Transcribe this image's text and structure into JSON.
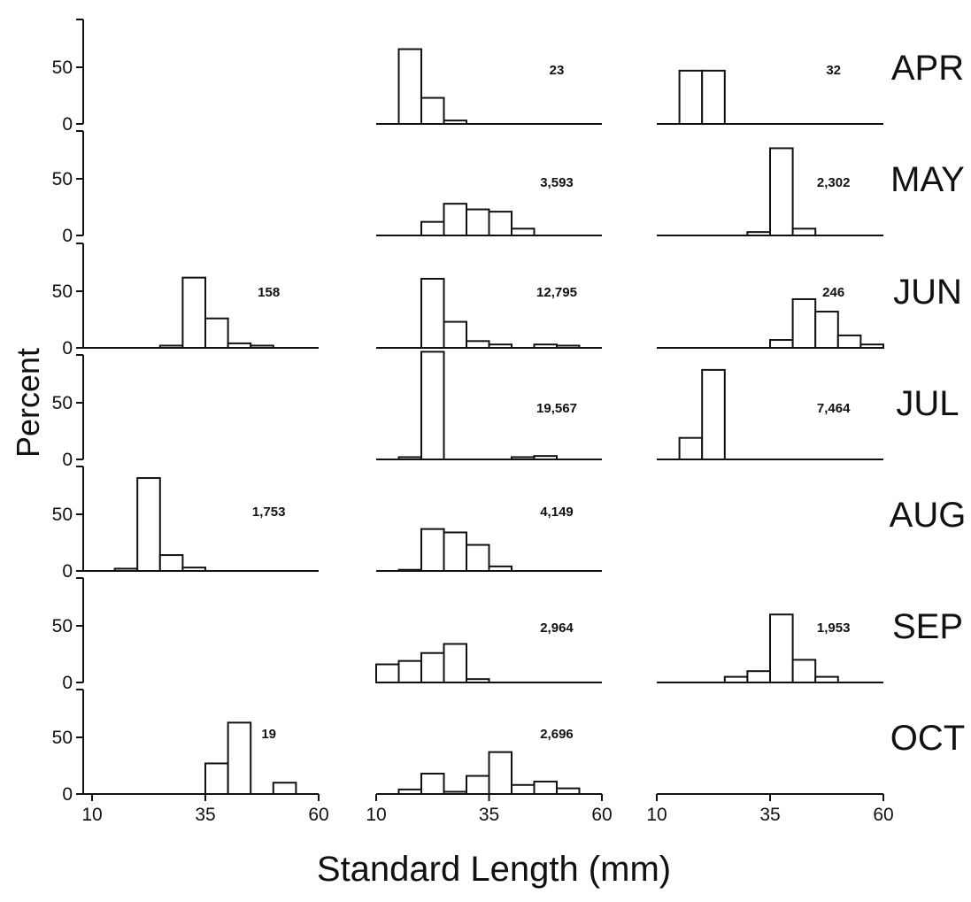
{
  "chart_data": {
    "type": "bar",
    "ylabel": "Percent",
    "xlabel": "Standard Length (mm)",
    "x_range": [
      10,
      60
    ],
    "x_ticks": [
      "10",
      "35",
      "60"
    ],
    "y_range": [
      0,
      100
    ],
    "y_ticks": [
      "0",
      "50"
    ],
    "bin_width": 5,
    "months": [
      "APR",
      "MAY",
      "JUN",
      "JUL",
      "AUG",
      "SEP",
      "OCT"
    ],
    "columns": 3,
    "panels": [
      {
        "month": "APR",
        "col": 2,
        "n": "23",
        "bins": [
          {
            "start": 15,
            "value": 66
          },
          {
            "start": 20,
            "value": 23
          },
          {
            "start": 25,
            "value": 3
          }
        ]
      },
      {
        "month": "APR",
        "col": 3,
        "n": "32",
        "bins": [
          {
            "start": 15,
            "value": 47
          },
          {
            "start": 20,
            "value": 47
          }
        ]
      },
      {
        "month": "MAY",
        "col": 2,
        "n": "3,593",
        "bins": [
          {
            "start": 20,
            "value": 12
          },
          {
            "start": 25,
            "value": 28
          },
          {
            "start": 30,
            "value": 23
          },
          {
            "start": 35,
            "value": 21
          },
          {
            "start": 40,
            "value": 6
          }
        ]
      },
      {
        "month": "MAY",
        "col": 3,
        "n": "2,302",
        "bins": [
          {
            "start": 30,
            "value": 3
          },
          {
            "start": 35,
            "value": 77
          },
          {
            "start": 40,
            "value": 6
          }
        ]
      },
      {
        "month": "JUN",
        "col": 1,
        "n": "158",
        "bins": [
          {
            "start": 25,
            "value": 2
          },
          {
            "start": 30,
            "value": 62
          },
          {
            "start": 35,
            "value": 26
          },
          {
            "start": 40,
            "value": 4
          },
          {
            "start": 45,
            "value": 2
          }
        ]
      },
      {
        "month": "JUN",
        "col": 2,
        "n": "12,795",
        "bins": [
          {
            "start": 20,
            "value": 61
          },
          {
            "start": 25,
            "value": 23
          },
          {
            "start": 30,
            "value": 6
          },
          {
            "start": 35,
            "value": 3
          },
          {
            "start": 45,
            "value": 3
          },
          {
            "start": 50,
            "value": 2
          }
        ]
      },
      {
        "month": "JUN",
        "col": 3,
        "n": "246",
        "bins": [
          {
            "start": 35,
            "value": 7
          },
          {
            "start": 40,
            "value": 43
          },
          {
            "start": 45,
            "value": 32
          },
          {
            "start": 50,
            "value": 11
          },
          {
            "start": 55,
            "value": 3
          }
        ]
      },
      {
        "month": "JUL",
        "col": 2,
        "n": "19,567",
        "bins": [
          {
            "start": 15,
            "value": 2
          },
          {
            "start": 20,
            "value": 95
          },
          {
            "start": 40,
            "value": 2
          },
          {
            "start": 45,
            "value": 3
          }
        ]
      },
      {
        "month": "JUL",
        "col": 3,
        "n": "7,464",
        "bins": [
          {
            "start": 15,
            "value": 19
          },
          {
            "start": 20,
            "value": 79
          }
        ]
      },
      {
        "month": "AUG",
        "col": 1,
        "n": "1,753",
        "bins": [
          {
            "start": 15,
            "value": 2
          },
          {
            "start": 20,
            "value": 82
          },
          {
            "start": 25,
            "value": 14
          },
          {
            "start": 30,
            "value": 3
          }
        ]
      },
      {
        "month": "AUG",
        "col": 2,
        "n": "4,149",
        "bins": [
          {
            "start": 15,
            "value": 1
          },
          {
            "start": 20,
            "value": 37
          },
          {
            "start": 25,
            "value": 34
          },
          {
            "start": 30,
            "value": 23
          },
          {
            "start": 35,
            "value": 4
          }
        ]
      },
      {
        "month": "SEP",
        "col": 2,
        "n": "2,964",
        "bins": [
          {
            "start": 10,
            "value": 16
          },
          {
            "start": 15,
            "value": 19
          },
          {
            "start": 20,
            "value": 26
          },
          {
            "start": 25,
            "value": 34
          },
          {
            "start": 30,
            "value": 3
          }
        ]
      },
      {
        "month": "SEP",
        "col": 3,
        "n": "1,953",
        "bins": [
          {
            "start": 25,
            "value": 5
          },
          {
            "start": 30,
            "value": 10
          },
          {
            "start": 35,
            "value": 60
          },
          {
            "start": 40,
            "value": 20
          },
          {
            "start": 45,
            "value": 5
          }
        ]
      },
      {
        "month": "OCT",
        "col": 1,
        "n": "19",
        "bins": [
          {
            "start": 35,
            "value": 27
          },
          {
            "start": 40,
            "value": 63
          },
          {
            "start": 50,
            "value": 10
          }
        ]
      },
      {
        "month": "OCT",
        "col": 2,
        "n": "2,696",
        "bins": [
          {
            "start": 15,
            "value": 4
          },
          {
            "start": 20,
            "value": 18
          },
          {
            "start": 25,
            "value": 2
          },
          {
            "start": 30,
            "value": 16
          },
          {
            "start": 35,
            "value": 37
          },
          {
            "start": 40,
            "value": 8
          },
          {
            "start": 45,
            "value": 11
          },
          {
            "start": 50,
            "value": 5
          }
        ]
      }
    ]
  }
}
